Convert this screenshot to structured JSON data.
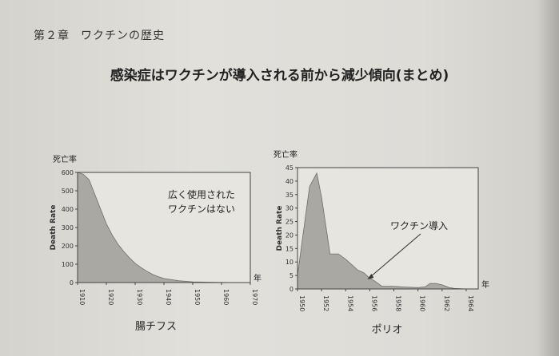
{
  "page": {
    "header_chapter": "第２章",
    "header_title": "ワクチンの歴史",
    "figure_title": "感染症はワクチンが導入される前から減少傾向(まとめ)"
  },
  "chart_data": [
    {
      "type": "area",
      "caption": "腸チフス",
      "ylabel": "Death Rate",
      "ylabel_ja": "死亡率",
      "xunit": "年",
      "annotation": "広く使用された\nワクチンはない",
      "x": [
        1910,
        1912,
        1914,
        1916,
        1918,
        1920,
        1922,
        1924,
        1926,
        1928,
        1930,
        1932,
        1934,
        1936,
        1938,
        1940,
        1945,
        1950,
        1955,
        1960,
        1965,
        1970
      ],
      "values": [
        600,
        590,
        560,
        480,
        400,
        320,
        260,
        210,
        170,
        135,
        105,
        82,
        62,
        45,
        32,
        22,
        10,
        4,
        2,
        1,
        0,
        0
      ],
      "xlim": [
        1910,
        1970
      ],
      "ylim": [
        0,
        600
      ],
      "xticks": [
        1910,
        1920,
        1930,
        1940,
        1950,
        1960,
        1970
      ],
      "yticks": [
        0,
        100,
        200,
        300,
        400,
        500,
        600
      ]
    },
    {
      "type": "area",
      "caption": "ポリオ",
      "ylabel": "Death Rate",
      "ylabel_ja": "死亡率",
      "xunit": "年",
      "annotation": "ワクチン導入",
      "annotation_target_x": 1955.8,
      "x": [
        1950,
        1951,
        1951.6,
        1952,
        1952.7,
        1953.4,
        1954,
        1954.5,
        1955,
        1955.5,
        1956,
        1956.4,
        1957,
        1958,
        1959,
        1960,
        1960.6,
        1961,
        1961.5,
        1962,
        1962.6,
        1963,
        1964,
        1965
      ],
      "values": [
        5,
        38,
        43,
        34,
        13,
        13,
        11,
        9,
        7,
        6,
        4,
        3,
        1,
        1,
        0.7,
        0.5,
        0.8,
        2,
        2,
        1.5,
        0.5,
        0.2,
        0,
        0
      ],
      "xlim": [
        1950,
        1965
      ],
      "ylim": [
        0,
        45
      ],
      "xticks": [
        1950,
        1952,
        1954,
        1956,
        1958,
        1960,
        1962,
        1964
      ],
      "yticks": [
        0,
        5,
        10,
        15,
        20,
        25,
        30,
        35,
        40,
        45
      ]
    }
  ]
}
